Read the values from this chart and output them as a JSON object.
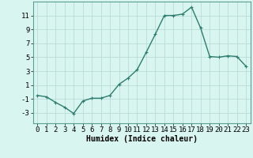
{
  "x": [
    0,
    1,
    2,
    3,
    4,
    5,
    6,
    7,
    8,
    9,
    10,
    11,
    12,
    13,
    14,
    15,
    16,
    17,
    18,
    19,
    20,
    21,
    22,
    23
  ],
  "y": [
    -0.5,
    -0.7,
    -1.5,
    -2.2,
    -3.1,
    -1.3,
    -0.9,
    -0.9,
    -0.5,
    1.1,
    2.0,
    3.2,
    5.7,
    8.3,
    11.0,
    11.0,
    11.2,
    12.2,
    9.2,
    5.1,
    5.0,
    5.2,
    5.1,
    3.7
  ],
  "line_color": "#2d7d6e",
  "marker": "+",
  "marker_size": 3,
  "linewidth": 1.0,
  "xlabel": "Humidex (Indice chaleur)",
  "xlabel_fontsize": 7,
  "bg_color": "#d8f5f0",
  "grid_color": "#b8ddd8",
  "tick_label_fontsize": 6.5,
  "ylim": [
    -4.5,
    13
  ],
  "yticks": [
    -3,
    -1,
    1,
    3,
    5,
    7,
    9,
    11
  ],
  "xlim": [
    -0.5,
    23.5
  ],
  "xticks": [
    0,
    1,
    2,
    3,
    4,
    5,
    6,
    7,
    8,
    9,
    10,
    11,
    12,
    13,
    14,
    15,
    16,
    17,
    18,
    19,
    20,
    21,
    22,
    23
  ]
}
